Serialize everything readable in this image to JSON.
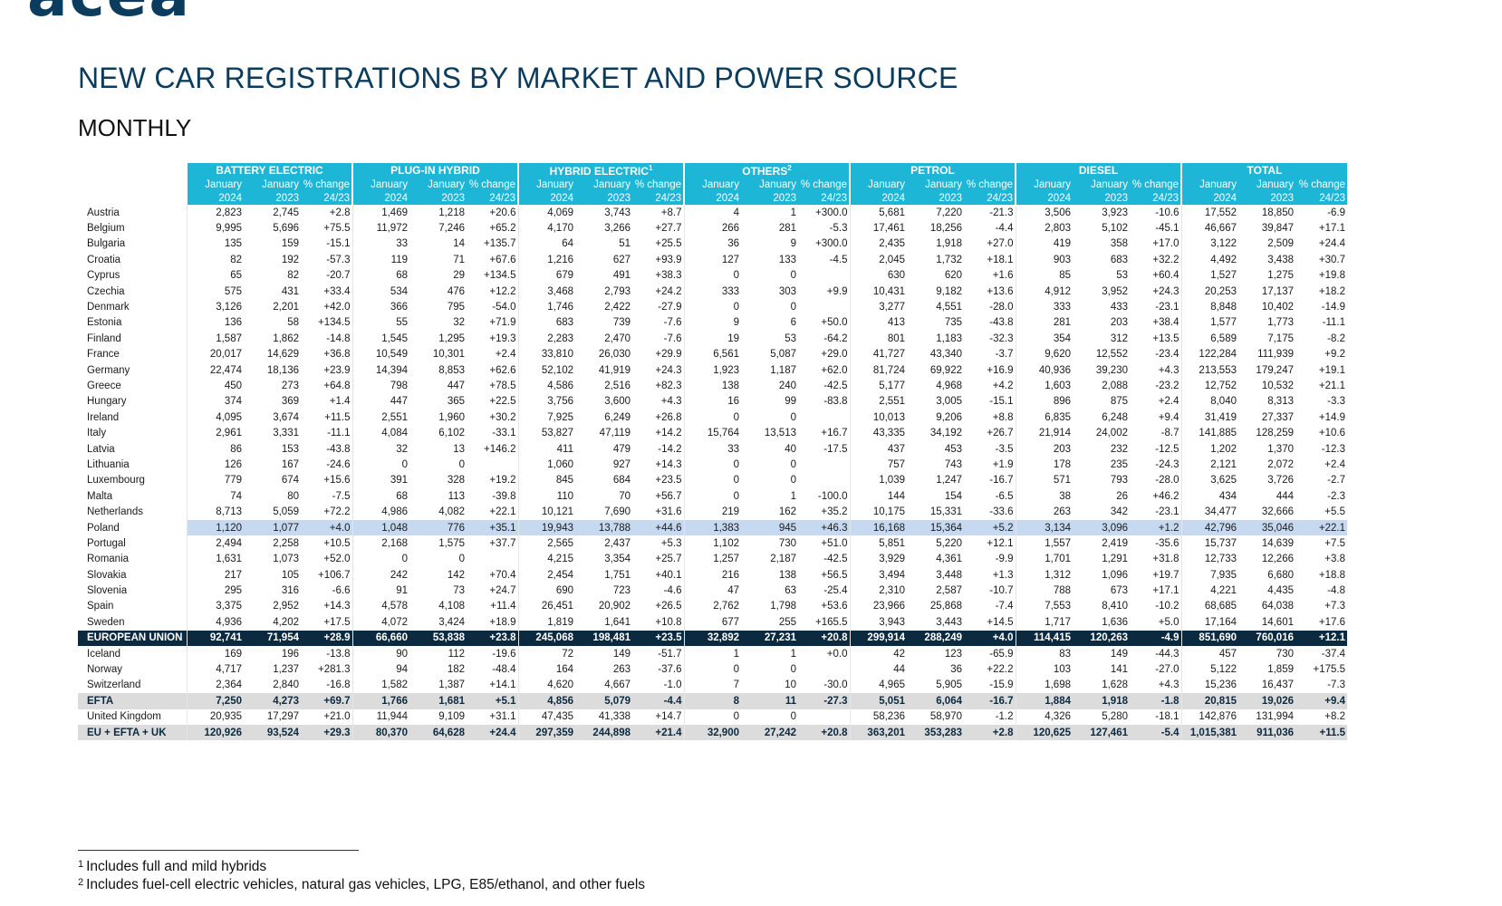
{
  "logo": {
    "text": "acea"
  },
  "title": "NEW CAR REGISTRATIONS BY MARKET AND POWER SOURCE",
  "subtitle": "MONTHLY",
  "table": {
    "groups": [
      {
        "label": "BATTERY ELECTRIC",
        "sup": ""
      },
      {
        "label": "PLUG-IN HYBRID",
        "sup": ""
      },
      {
        "label": "HYBRID ELECTRIC",
        "sup": "1"
      },
      {
        "label": "OTHERS",
        "sup": "2"
      },
      {
        "label": "PETROL",
        "sup": ""
      },
      {
        "label": "DIESEL",
        "sup": ""
      },
      {
        "label": "TOTAL",
        "sup": ""
      }
    ],
    "subheaders": {
      "row1": [
        "January",
        "January",
        "% change"
      ],
      "row2": [
        "2024",
        "2023",
        "24/23"
      ]
    },
    "rows": [
      {
        "name": "Austria",
        "values": [
          "2,823",
          "2,745",
          "+2.8",
          "1,469",
          "1,218",
          "+20.6",
          "4,069",
          "3,743",
          "+8.7",
          "4",
          "1",
          "+300.0",
          "5,681",
          "7,220",
          "-21.3",
          "3,506",
          "3,923",
          "-10.6",
          "17,552",
          "18,850",
          "-6.9"
        ]
      },
      {
        "name": "Belgium",
        "values": [
          "9,995",
          "5,696",
          "+75.5",
          "11,972",
          "7,246",
          "+65.2",
          "4,170",
          "3,266",
          "+27.7",
          "266",
          "281",
          "-5.3",
          "17,461",
          "18,256",
          "-4.4",
          "2,803",
          "5,102",
          "-45.1",
          "46,667",
          "39,847",
          "+17.1"
        ]
      },
      {
        "name": "Bulgaria",
        "values": [
          "135",
          "159",
          "-15.1",
          "33",
          "14",
          "+135.7",
          "64",
          "51",
          "+25.5",
          "36",
          "9",
          "+300.0",
          "2,435",
          "1,918",
          "+27.0",
          "419",
          "358",
          "+17.0",
          "3,122",
          "2,509",
          "+24.4"
        ]
      },
      {
        "name": "Croatia",
        "values": [
          "82",
          "192",
          "-57.3",
          "119",
          "71",
          "+67.6",
          "1,216",
          "627",
          "+93.9",
          "127",
          "133",
          "-4.5",
          "2,045",
          "1,732",
          "+18.1",
          "903",
          "683",
          "+32.2",
          "4,492",
          "3,438",
          "+30.7"
        ]
      },
      {
        "name": "Cyprus",
        "values": [
          "65",
          "82",
          "-20.7",
          "68",
          "29",
          "+134.5",
          "679",
          "491",
          "+38.3",
          "0",
          "0",
          "",
          "630",
          "620",
          "+1.6",
          "85",
          "53",
          "+60.4",
          "1,527",
          "1,275",
          "+19.8"
        ]
      },
      {
        "name": "Czechia",
        "values": [
          "575",
          "431",
          "+33.4",
          "534",
          "476",
          "+12.2",
          "3,468",
          "2,793",
          "+24.2",
          "333",
          "303",
          "+9.9",
          "10,431",
          "9,182",
          "+13.6",
          "4,912",
          "3,952",
          "+24.3",
          "20,253",
          "17,137",
          "+18.2"
        ]
      },
      {
        "name": "Denmark",
        "values": [
          "3,126",
          "2,201",
          "+42.0",
          "366",
          "795",
          "-54.0",
          "1,746",
          "2,422",
          "-27.9",
          "0",
          "0",
          "",
          "3,277",
          "4,551",
          "-28.0",
          "333",
          "433",
          "-23.1",
          "8,848",
          "10,402",
          "-14.9"
        ]
      },
      {
        "name": "Estonia",
        "values": [
          "136",
          "58",
          "+134.5",
          "55",
          "32",
          "+71.9",
          "683",
          "739",
          "-7.6",
          "9",
          "6",
          "+50.0",
          "413",
          "735",
          "-43.8",
          "281",
          "203",
          "+38.4",
          "1,577",
          "1,773",
          "-11.1"
        ]
      },
      {
        "name": "Finland",
        "values": [
          "1,587",
          "1,862",
          "-14.8",
          "1,545",
          "1,295",
          "+19.3",
          "2,283",
          "2,470",
          "-7.6",
          "19",
          "53",
          "-64.2",
          "801",
          "1,183",
          "-32.3",
          "354",
          "312",
          "+13.5",
          "6,589",
          "7,175",
          "-8.2"
        ]
      },
      {
        "name": "France",
        "values": [
          "20,017",
          "14,629",
          "+36.8",
          "10,549",
          "10,301",
          "+2.4",
          "33,810",
          "26,030",
          "+29.9",
          "6,561",
          "5,087",
          "+29.0",
          "41,727",
          "43,340",
          "-3.7",
          "9,620",
          "12,552",
          "-23.4",
          "122,284",
          "111,939",
          "+9.2"
        ]
      },
      {
        "name": "Germany",
        "values": [
          "22,474",
          "18,136",
          "+23.9",
          "14,394",
          "8,853",
          "+62.6",
          "52,102",
          "41,919",
          "+24.3",
          "1,923",
          "1,187",
          "+62.0",
          "81,724",
          "69,922",
          "+16.9",
          "40,936",
          "39,230",
          "+4.3",
          "213,553",
          "179,247",
          "+19.1"
        ]
      },
      {
        "name": "Greece",
        "values": [
          "450",
          "273",
          "+64.8",
          "798",
          "447",
          "+78.5",
          "4,586",
          "2,516",
          "+82.3",
          "138",
          "240",
          "-42.5",
          "5,177",
          "4,968",
          "+4.2",
          "1,603",
          "2,088",
          "-23.2",
          "12,752",
          "10,532",
          "+21.1"
        ]
      },
      {
        "name": "Hungary",
        "values": [
          "374",
          "369",
          "+1.4",
          "447",
          "365",
          "+22.5",
          "3,756",
          "3,600",
          "+4.3",
          "16",
          "99",
          "-83.8",
          "2,551",
          "3,005",
          "-15.1",
          "896",
          "875",
          "+2.4",
          "8,040",
          "8,313",
          "-3.3"
        ]
      },
      {
        "name": "Ireland",
        "values": [
          "4,095",
          "3,674",
          "+11.5",
          "2,551",
          "1,960",
          "+30.2",
          "7,925",
          "6,249",
          "+26.8",
          "0",
          "0",
          "",
          "10,013",
          "9,206",
          "+8.8",
          "6,835",
          "6,248",
          "+9.4",
          "31,419",
          "27,337",
          "+14.9"
        ]
      },
      {
        "name": "Italy",
        "values": [
          "2,961",
          "3,331",
          "-11.1",
          "4,084",
          "6,102",
          "-33.1",
          "53,827",
          "47,119",
          "+14.2",
          "15,764",
          "13,513",
          "+16.7",
          "43,335",
          "34,192",
          "+26.7",
          "21,914",
          "24,002",
          "-8.7",
          "141,885",
          "128,259",
          "+10.6"
        ]
      },
      {
        "name": "Latvia",
        "values": [
          "86",
          "153",
          "-43.8",
          "32",
          "13",
          "+146.2",
          "411",
          "479",
          "-14.2",
          "33",
          "40",
          "-17.5",
          "437",
          "453",
          "-3.5",
          "203",
          "232",
          "-12.5",
          "1,202",
          "1,370",
          "-12.3"
        ]
      },
      {
        "name": "Lithuania",
        "values": [
          "126",
          "167",
          "-24.6",
          "0",
          "0",
          "",
          "1,060",
          "927",
          "+14.3",
          "0",
          "0",
          "",
          "757",
          "743",
          "+1.9",
          "178",
          "235",
          "-24.3",
          "2,121",
          "2,072",
          "+2.4"
        ]
      },
      {
        "name": "Luxembourg",
        "values": [
          "779",
          "674",
          "+15.6",
          "391",
          "328",
          "+19.2",
          "845",
          "684",
          "+23.5",
          "0",
          "0",
          "",
          "1,039",
          "1,247",
          "-16.7",
          "571",
          "793",
          "-28.0",
          "3,625",
          "3,726",
          "-2.7"
        ]
      },
      {
        "name": "Malta",
        "values": [
          "74",
          "80",
          "-7.5",
          "68",
          "113",
          "-39.8",
          "110",
          "70",
          "+56.7",
          "0",
          "1",
          "-100.0",
          "144",
          "154",
          "-6.5",
          "38",
          "26",
          "+46.2",
          "434",
          "444",
          "-2.3"
        ]
      },
      {
        "name": "Netherlands",
        "values": [
          "8,713",
          "5,059",
          "+72.2",
          "4,986",
          "4,082",
          "+22.1",
          "10,121",
          "7,690",
          "+31.6",
          "219",
          "162",
          "+35.2",
          "10,175",
          "15,331",
          "-33.6",
          "263",
          "342",
          "-23.1",
          "34,477",
          "32,666",
          "+5.5"
        ]
      },
      {
        "name": "Poland",
        "highlight": true,
        "values": [
          "1,120",
          "1,077",
          "+4.0",
          "1,048",
          "776",
          "+35.1",
          "19,943",
          "13,788",
          "+44.6",
          "1,383",
          "945",
          "+46.3",
          "16,168",
          "15,364",
          "+5.2",
          "3,134",
          "3,096",
          "+1.2",
          "42,796",
          "35,046",
          "+22.1"
        ]
      },
      {
        "name": "Portugal",
        "values": [
          "2,494",
          "2,258",
          "+10.5",
          "2,168",
          "1,575",
          "+37.7",
          "2,565",
          "2,437",
          "+5.3",
          "1,102",
          "730",
          "+51.0",
          "5,851",
          "5,220",
          "+12.1",
          "1,557",
          "2,419",
          "-35.6",
          "15,737",
          "14,639",
          "+7.5"
        ]
      },
      {
        "name": "Romania",
        "values": [
          "1,631",
          "1,073",
          "+52.0",
          "0",
          "0",
          "",
          "4,215",
          "3,354",
          "+25.7",
          "1,257",
          "2,187",
          "-42.5",
          "3,929",
          "4,361",
          "-9.9",
          "1,701",
          "1,291",
          "+31.8",
          "12,733",
          "12,266",
          "+3.8"
        ]
      },
      {
        "name": "Slovakia",
        "values": [
          "217",
          "105",
          "+106.7",
          "242",
          "142",
          "+70.4",
          "2,454",
          "1,751",
          "+40.1",
          "216",
          "138",
          "+56.5",
          "3,494",
          "3,448",
          "+1.3",
          "1,312",
          "1,096",
          "+19.7",
          "7,935",
          "6,680",
          "+18.8"
        ]
      },
      {
        "name": "Slovenia",
        "values": [
          "295",
          "316",
          "-6.6",
          "91",
          "73",
          "+24.7",
          "690",
          "723",
          "-4.6",
          "47",
          "63",
          "-25.4",
          "2,310",
          "2,587",
          "-10.7",
          "788",
          "673",
          "+17.1",
          "4,221",
          "4,435",
          "-4.8"
        ]
      },
      {
        "name": "Spain",
        "values": [
          "3,375",
          "2,952",
          "+14.3",
          "4,578",
          "4,108",
          "+11.4",
          "26,451",
          "20,902",
          "+26.5",
          "2,762",
          "1,798",
          "+53.6",
          "23,966",
          "25,868",
          "-7.4",
          "7,553",
          "8,410",
          "-10.2",
          "68,685",
          "64,038",
          "+7.3"
        ]
      },
      {
        "name": "Sweden",
        "values": [
          "4,936",
          "4,202",
          "+17.5",
          "4,072",
          "3,424",
          "+18.9",
          "1,819",
          "1,641",
          "+10.8",
          "677",
          "255",
          "+165.5",
          "3,943",
          "3,443",
          "+14.5",
          "1,717",
          "1,636",
          "+5.0",
          "17,164",
          "14,601",
          "+17.6"
        ]
      },
      {
        "name": "EUROPEAN UNION",
        "style": "eu",
        "values": [
          "92,741",
          "71,954",
          "+28.9",
          "66,660",
          "53,838",
          "+23.8",
          "245,068",
          "198,481",
          "+23.5",
          "32,892",
          "27,231",
          "+20.8",
          "299,914",
          "288,249",
          "+4.0",
          "114,415",
          "120,263",
          "-4.9",
          "851,690",
          "760,016",
          "+12.1"
        ]
      },
      {
        "name": "Iceland",
        "values": [
          "169",
          "196",
          "-13.8",
          "90",
          "112",
          "-19.6",
          "72",
          "149",
          "-51.7",
          "1",
          "1",
          "+0.0",
          "42",
          "123",
          "-65.9",
          "83",
          "149",
          "-44.3",
          "457",
          "730",
          "-37.4"
        ]
      },
      {
        "name": "Norway",
        "values": [
          "4,717",
          "1,237",
          "+281.3",
          "94",
          "182",
          "-48.4",
          "164",
          "263",
          "-37.6",
          "0",
          "0",
          "",
          "44",
          "36",
          "+22.2",
          "103",
          "141",
          "-27.0",
          "5,122",
          "1,859",
          "+175.5"
        ]
      },
      {
        "name": "Switzerland",
        "values": [
          "2,364",
          "2,840",
          "-16.8",
          "1,582",
          "1,387",
          "+14.1",
          "4,620",
          "4,667",
          "-1.0",
          "7",
          "10",
          "-30.0",
          "4,965",
          "5,905",
          "-15.9",
          "1,698",
          "1,628",
          "+4.3",
          "15,236",
          "16,437",
          "-7.3"
        ]
      },
      {
        "name": "EFTA",
        "style": "efta",
        "values": [
          "7,250",
          "4,273",
          "+69.7",
          "1,766",
          "1,681",
          "+5.1",
          "4,856",
          "5,079",
          "-4.4",
          "8",
          "11",
          "-27.3",
          "5,051",
          "6,064",
          "-16.7",
          "1,884",
          "1,918",
          "-1.8",
          "20,815",
          "19,026",
          "+9.4"
        ]
      },
      {
        "name": "United Kingdom",
        "values": [
          "20,935",
          "17,297",
          "+21.0",
          "11,944",
          "9,109",
          "+31.1",
          "47,435",
          "41,338",
          "+14.7",
          "0",
          "0",
          "",
          "58,236",
          "58,970",
          "-1.2",
          "4,326",
          "5,280",
          "-18.1",
          "142,876",
          "131,994",
          "+8.2"
        ]
      },
      {
        "name": "EU + EFTA + UK",
        "style": "total",
        "values": [
          "120,926",
          "93,524",
          "+29.3",
          "80,370",
          "64,628",
          "+24.4",
          "297,359",
          "244,898",
          "+21.4",
          "32,900",
          "27,242",
          "+20.8",
          "363,201",
          "353,283",
          "+2.8",
          "120,625",
          "127,461",
          "-5.4",
          "1,015,381",
          "911,036",
          "+11.5"
        ]
      }
    ]
  },
  "footnotes": [
    {
      "num": "1",
      "text": "Includes full and mild hybrids"
    },
    {
      "num": "2",
      "text": "Includes fuel-cell electric vehicles, natural gas vehicles, LPG, E85/ethanol, and other fuels"
    }
  ]
}
